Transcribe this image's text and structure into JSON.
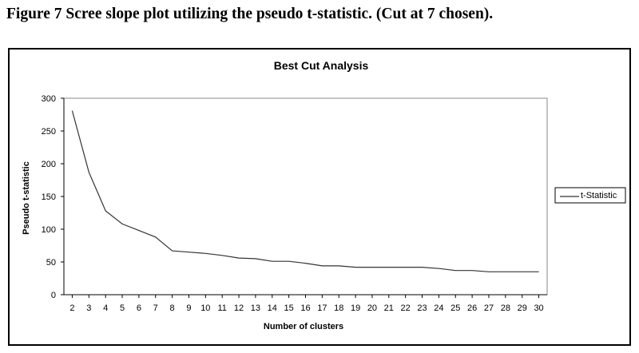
{
  "figure": {
    "caption": "Figure 7 Scree slope plot utilizing the pseudo t-statistic. (Cut at 7 chosen)."
  },
  "chart_data": {
    "type": "line",
    "title": "Best Cut Analysis",
    "xlabel": "Number of clusters",
    "ylabel": "Pseudo t-statistic",
    "ylim": [
      0,
      300
    ],
    "yticks": [
      0,
      50,
      100,
      150,
      200,
      250,
      300
    ],
    "grid": false,
    "legend_position": "right",
    "line_color": "#333333",
    "categories": [
      "2",
      "3",
      "4",
      "5",
      "6",
      "7",
      "8",
      "9",
      "10",
      "11",
      "12",
      "13",
      "14",
      "15",
      "16",
      "17",
      "18",
      "19",
      "20",
      "21",
      "22",
      "23",
      "24",
      "25",
      "26",
      "27",
      "28",
      "29",
      "30"
    ],
    "series": [
      {
        "name": "t-Statistic",
        "values": [
          281,
          187,
          128,
          108,
          98,
          88,
          67,
          65,
          63,
          60,
          56,
          55,
          51,
          51,
          48,
          44,
          44,
          42,
          42,
          42,
          42,
          42,
          40,
          37,
          37,
          35,
          35,
          35,
          35
        ]
      }
    ]
  }
}
